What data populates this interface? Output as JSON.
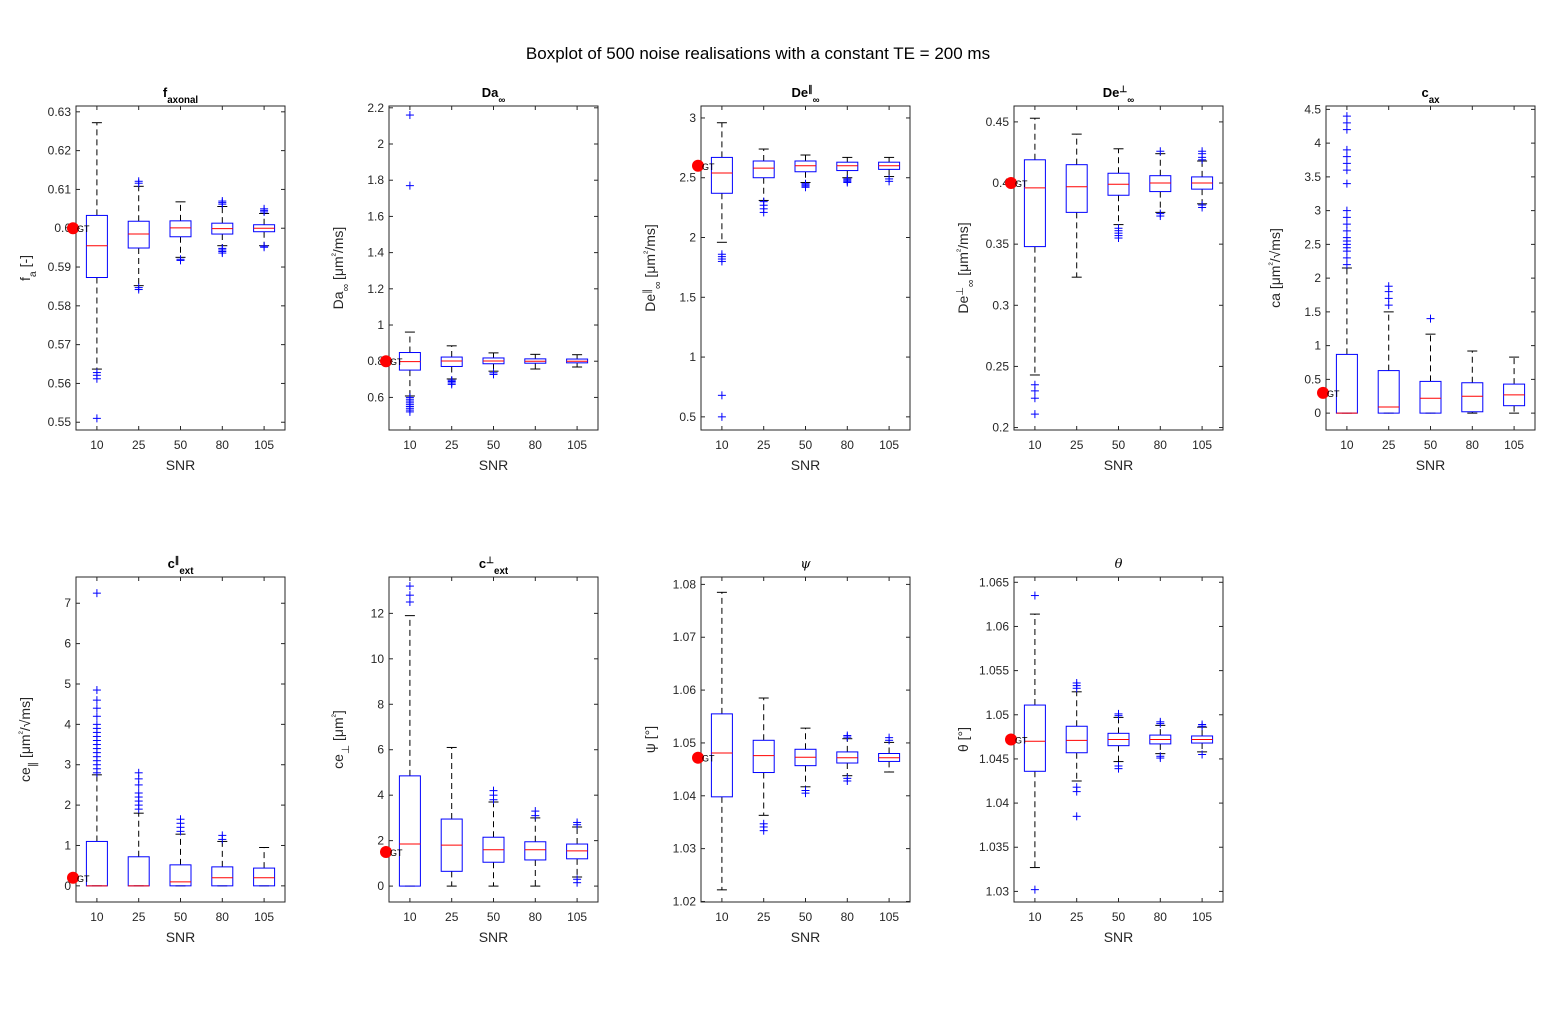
{
  "figure": {
    "title": "Boxplot of 500 noise realisations with a constant TE = 200 ms",
    "colors": {
      "box": "#0000ff",
      "median": "#ff0000",
      "whisker": "#000000",
      "ground_truth": "#ff0000",
      "axes": "#262626"
    },
    "ground_truth_label": "GT"
  },
  "chart_data": [
    {
      "type": "box",
      "title": "f_axonal",
      "title_html": "f<sub>axonal</sub>",
      "ylabel": "f_a [-]",
      "xlabel": "SNR",
      "categories": [
        "10",
        "25",
        "50",
        "80",
        "105"
      ],
      "ylim": [
        0.548,
        0.6315
      ],
      "yticks": [
        0.55,
        0.56,
        0.57,
        0.58,
        0.59,
        0.6,
        0.61,
        0.62,
        0.63
      ],
      "ytick_labels": [
        "0.55",
        "0.56",
        "0.57",
        "0.58",
        "0.59",
        "0.6",
        "0.61",
        "0.62",
        "0.63"
      ],
      "ground_truth": 0.6,
      "boxes": [
        {
          "q1": 0.5873,
          "median": 0.5955,
          "q3": 0.6033,
          "whisker_low": 0.5637,
          "whisker_high": 0.6272,
          "outliers": [
            0.5612,
            0.5621,
            0.5628,
            0.551
          ]
        },
        {
          "q1": 0.5949,
          "median": 0.5985,
          "q3": 0.6018,
          "whisker_low": 0.5852,
          "whisker_high": 0.6108,
          "outliers": [
            0.5842,
            0.5847,
            0.6116,
            0.6121
          ]
        },
        {
          "q1": 0.5978,
          "median": 0.6001,
          "q3": 0.6019,
          "whisker_low": 0.5925,
          "whisker_high": 0.6068,
          "outliers": [
            0.5917,
            0.592
          ]
        },
        {
          "q1": 0.5985,
          "median": 0.5999,
          "q3": 0.6013,
          "whisker_low": 0.5955,
          "whisker_high": 0.6056,
          "outliers": [
            0.5936,
            0.594,
            0.5944,
            0.5948,
            0.6062,
            0.6066,
            0.607
          ]
        },
        {
          "q1": 0.5991,
          "median": 0.6,
          "q3": 0.6009,
          "whisker_low": 0.5955,
          "whisker_high": 0.6038,
          "outliers": [
            0.5951,
            0.5954,
            0.6042,
            0.6046,
            0.605
          ]
        }
      ]
    },
    {
      "type": "box",
      "title": "Da_∞",
      "title_html": "Da<sub>∞</sub>",
      "ylabel": "Da_∞ [μm²/ms]",
      "xlabel": "SNR",
      "categories": [
        "10",
        "25",
        "50",
        "80",
        "105"
      ],
      "ylim": [
        0.42,
        2.21
      ],
      "yticks": [
        0.6,
        0.8,
        1,
        1.2,
        1.4,
        1.6,
        1.8,
        2,
        2.2
      ],
      "ytick_labels": [
        "0.6",
        "0.8",
        "1",
        "1.2",
        "1.4",
        "1.6",
        "1.8",
        "2",
        "2.2"
      ],
      "ground_truth": 0.8,
      "boxes": [
        {
          "q1": 0.751,
          "median": 0.798,
          "q3": 0.848,
          "whisker_low": 0.608,
          "whisker_high": 0.961,
          "outliers": [
            0.52,
            0.53,
            0.54,
            0.55,
            0.56,
            0.57,
            0.58,
            0.59,
            0.6,
            1.77,
            2.16
          ]
        },
        {
          "q1": 0.771,
          "median": 0.801,
          "q3": 0.823,
          "whisker_low": 0.702,
          "whisker_high": 0.885,
          "outliers": [
            0.672,
            0.68,
            0.688,
            0.695
          ]
        },
        {
          "q1": 0.786,
          "median": 0.801,
          "q3": 0.818,
          "whisker_low": 0.745,
          "whisker_high": 0.846,
          "outliers": [
            0.727,
            0.736
          ]
        },
        {
          "q1": 0.789,
          "median": 0.8,
          "q3": 0.813,
          "whisker_low": 0.757,
          "whisker_high": 0.838,
          "outliers": []
        },
        {
          "q1": 0.791,
          "median": 0.8,
          "q3": 0.812,
          "whisker_low": 0.768,
          "whisker_high": 0.836,
          "outliers": []
        }
      ]
    },
    {
      "type": "box",
      "title": "De∥_∞",
      "title_html": "De<sup>∥</sup><sub>∞</sub>",
      "ylabel": "De∥_∞ [μm²/ms]",
      "xlabel": "SNR",
      "categories": [
        "10",
        "25",
        "50",
        "80",
        "105"
      ],
      "ylim": [
        0.39,
        3.1
      ],
      "yticks": [
        0.5,
        1,
        1.5,
        2,
        2.5,
        3
      ],
      "ytick_labels": [
        "0.5",
        "1",
        "1.5",
        "2",
        "2.5",
        "3"
      ],
      "ground_truth": 2.6,
      "boxes": [
        {
          "q1": 2.37,
          "median": 2.54,
          "q3": 2.67,
          "whisker_low": 1.96,
          "whisker_high": 2.96,
          "outliers": [
            1.8,
            1.82,
            1.84,
            1.86,
            0.68,
            0.5
          ]
        },
        {
          "q1": 2.5,
          "median": 2.58,
          "q3": 2.64,
          "whisker_low": 2.31,
          "whisker_high": 2.74,
          "outliers": [
            2.21,
            2.24,
            2.27,
            2.3
          ]
        },
        {
          "q1": 2.55,
          "median": 2.6,
          "q3": 2.64,
          "whisker_low": 2.46,
          "whisker_high": 2.69,
          "outliers": [
            2.42,
            2.43,
            2.44,
            2.45
          ]
        },
        {
          "q1": 2.56,
          "median": 2.6,
          "q3": 2.63,
          "whisker_low": 2.5,
          "whisker_high": 2.67,
          "outliers": [
            2.46,
            2.47,
            2.48,
            2.49
          ]
        },
        {
          "q1": 2.57,
          "median": 2.6,
          "q3": 2.63,
          "whisker_low": 2.51,
          "whisker_high": 2.67,
          "outliers": [
            2.47,
            2.49
          ]
        }
      ]
    },
    {
      "type": "box",
      "title": "De⊥_∞",
      "title_html": "De<sup>⊥</sup><sub>∞</sub>",
      "ylabel": "De⊥_∞ [μm²/ms]",
      "xlabel": "SNR",
      "categories": [
        "10",
        "25",
        "50",
        "80",
        "105"
      ],
      "ylim": [
        0.198,
        0.463
      ],
      "yticks": [
        0.2,
        0.25,
        0.3,
        0.35,
        0.4,
        0.45
      ],
      "ytick_labels": [
        "0.2",
        "0.25",
        "0.3",
        "0.35",
        "0.4",
        "0.45"
      ],
      "ground_truth": 0.4,
      "boxes": [
        {
          "q1": 0.348,
          "median": 0.396,
          "q3": 0.419,
          "whisker_low": 0.243,
          "whisker_high": 0.453,
          "outliers": [
            0.235,
            0.23,
            0.224,
            0.211
          ]
        },
        {
          "q1": 0.376,
          "median": 0.397,
          "q3": 0.415,
          "whisker_low": 0.323,
          "whisker_high": 0.44,
          "outliers": []
        },
        {
          "q1": 0.39,
          "median": 0.399,
          "q3": 0.408,
          "whisker_low": 0.366,
          "whisker_high": 0.428,
          "outliers": [
            0.355,
            0.357,
            0.359,
            0.361,
            0.363
          ]
        },
        {
          "q1": 0.393,
          "median": 0.4,
          "q3": 0.406,
          "whisker_low": 0.376,
          "whisker_high": 0.424,
          "outliers": [
            0.373,
            0.375,
            0.426
          ]
        },
        {
          "q1": 0.395,
          "median": 0.4,
          "q3": 0.405,
          "whisker_low": 0.383,
          "whisker_high": 0.418,
          "outliers": [
            0.38,
            0.382,
            0.419,
            0.421,
            0.424,
            0.426
          ]
        }
      ]
    },
    {
      "type": "box",
      "title": "c_ax",
      "title_html": "c<sub>ax</sub>",
      "ylabel": "ca [μm²/√ms]",
      "xlabel": "SNR",
      "categories": [
        "10",
        "25",
        "50",
        "80",
        "105"
      ],
      "ylim": [
        -0.25,
        4.55
      ],
      "yticks": [
        0,
        0.5,
        1,
        1.5,
        2,
        2.5,
        3,
        3.5,
        4,
        4.5
      ],
      "ytick_labels": [
        "0",
        "0.5",
        "1",
        "1.5",
        "2",
        "2.5",
        "3",
        "3.5",
        "4",
        "4.5"
      ],
      "ground_truth": 0.3,
      "boxes": [
        {
          "q1": 0.0,
          "median": 0.0,
          "q3": 0.87,
          "whisker_low": 0.0,
          "whisker_high": 2.15,
          "outliers": [
            2.2,
            2.3,
            2.4,
            2.45,
            2.5,
            2.55,
            2.6,
            2.7,
            2.8,
            2.9,
            3.0,
            3.4,
            3.6,
            3.7,
            3.8,
            3.9,
            4.2,
            4.3,
            4.4
          ]
        },
        {
          "q1": 0.0,
          "median": 0.09,
          "q3": 0.63,
          "whisker_low": 0.0,
          "whisker_high": 1.5,
          "outliers": [
            1.6,
            1.7,
            1.8,
            1.88
          ]
        },
        {
          "q1": 0.0,
          "median": 0.22,
          "q3": 0.47,
          "whisker_low": 0.0,
          "whisker_high": 1.17,
          "outliers": [
            1.4
          ]
        },
        {
          "q1": 0.02,
          "median": 0.25,
          "q3": 0.45,
          "whisker_low": 0.0,
          "whisker_high": 0.92,
          "outliers": []
        },
        {
          "q1": 0.11,
          "median": 0.27,
          "q3": 0.43,
          "whisker_low": 0.0,
          "whisker_high": 0.83,
          "outliers": []
        }
      ]
    },
    {
      "type": "box",
      "title": "c∥_ext",
      "title_html": "c<sup>∥</sup><sub>ext</sub>",
      "ylabel": "ce_∥ [μm²/√ms]",
      "xlabel": "SNR",
      "categories": [
        "10",
        "25",
        "50",
        "80",
        "105"
      ],
      "ylim": [
        -0.4,
        7.65
      ],
      "yticks": [
        0,
        1,
        2,
        3,
        4,
        5,
        6,
        7
      ],
      "ytick_labels": [
        "0",
        "1",
        "2",
        "3",
        "4",
        "5",
        "6",
        "7"
      ],
      "ground_truth": 0.2,
      "boxes": [
        {
          "q1": 0.0,
          "median": 0.0,
          "q3": 1.1,
          "whisker_low": 0.0,
          "whisker_high": 2.75,
          "outliers": [
            2.8,
            2.9,
            3.0,
            3.1,
            3.2,
            3.3,
            3.4,
            3.5,
            3.6,
            3.7,
            3.8,
            3.9,
            4.0,
            4.2,
            4.4,
            4.6,
            4.85,
            7.25
          ]
        },
        {
          "q1": 0.0,
          "median": 0.0,
          "q3": 0.72,
          "whisker_low": 0.0,
          "whisker_high": 1.8,
          "outliers": [
            1.9,
            2.0,
            2.1,
            2.2,
            2.3,
            2.5,
            2.65,
            2.8
          ]
        },
        {
          "q1": 0.0,
          "median": 0.1,
          "q3": 0.52,
          "whisker_low": 0.0,
          "whisker_high": 1.28,
          "outliers": [
            1.35,
            1.45,
            1.55,
            1.65
          ]
        },
        {
          "q1": 0.0,
          "median": 0.2,
          "q3": 0.47,
          "whisker_low": 0.0,
          "whisker_high": 1.1,
          "outliers": [
            1.15,
            1.25
          ]
        },
        {
          "q1": 0.0,
          "median": 0.2,
          "q3": 0.44,
          "whisker_low": 0.0,
          "whisker_high": 0.95,
          "outliers": []
        }
      ]
    },
    {
      "type": "box",
      "title": "c⊥_ext",
      "title_html": "c<sup>⊥</sup><sub>ext</sub>",
      "ylabel": "ce_⊥ [μm²]",
      "xlabel": "SNR",
      "categories": [
        "10",
        "25",
        "50",
        "80",
        "105"
      ],
      "ylim": [
        -0.7,
        13.6
      ],
      "yticks": [
        0,
        2,
        4,
        6,
        8,
        10,
        12
      ],
      "ytick_labels": [
        "0",
        "2",
        "4",
        "6",
        "8",
        "10",
        "12"
      ],
      "ground_truth": 1.5,
      "boxes": [
        {
          "q1": 0.0,
          "median": 1.85,
          "q3": 4.85,
          "whisker_low": 0.0,
          "whisker_high": 11.9,
          "outliers": [
            12.5,
            12.8,
            13.2
          ]
        },
        {
          "q1": 0.65,
          "median": 1.8,
          "q3": 2.95,
          "whisker_low": 0.0,
          "whisker_high": 6.1,
          "outliers": []
        },
        {
          "q1": 1.05,
          "median": 1.6,
          "q3": 2.15,
          "whisker_low": 0.0,
          "whisker_high": 3.7,
          "outliers": [
            3.8,
            4.0,
            4.2
          ]
        },
        {
          "q1": 1.15,
          "median": 1.6,
          "q3": 1.95,
          "whisker_low": 0.0,
          "whisker_high": 3.0,
          "outliers": [
            3.1,
            3.3
          ]
        },
        {
          "q1": 1.2,
          "median": 1.55,
          "q3": 1.85,
          "whisker_low": 0.4,
          "whisker_high": 2.6,
          "outliers": [
            0.15,
            0.3,
            2.7,
            2.8
          ]
        }
      ]
    },
    {
      "type": "box",
      "title": "ψ",
      "title_html": "ψ",
      "ylabel": "ψ [°]",
      "xlabel": "SNR",
      "categories": [
        "10",
        "25",
        "50",
        "80",
        "105"
      ],
      "ylim": [
        1.0199,
        1.0814
      ],
      "yticks": [
        1.02,
        1.03,
        1.04,
        1.05,
        1.06,
        1.07,
        1.08
      ],
      "ytick_labels": [
        "1.02",
        "1.03",
        "1.04",
        "1.05",
        "1.06",
        "1.07",
        "1.08"
      ],
      "ground_truth": 1.0472,
      "boxes": [
        {
          "q1": 1.0398,
          "median": 1.0481,
          "q3": 1.0555,
          "whisker_low": 1.0222,
          "whisker_high": 1.0785,
          "outliers": []
        },
        {
          "q1": 1.0444,
          "median": 1.0476,
          "q3": 1.0505,
          "whisker_low": 1.0363,
          "whisker_high": 1.0585,
          "outliers": [
            1.0334,
            1.0341,
            1.0347
          ]
        },
        {
          "q1": 1.0457,
          "median": 1.0473,
          "q3": 1.0488,
          "whisker_low": 1.0417,
          "whisker_high": 1.0528,
          "outliers": [
            1.0405,
            1.041
          ]
        },
        {
          "q1": 1.0462,
          "median": 1.0472,
          "q3": 1.0483,
          "whisker_low": 1.0438,
          "whisker_high": 1.0508,
          "outliers": [
            1.0428,
            1.0433,
            1.0511,
            1.0514
          ]
        },
        {
          "q1": 1.0465,
          "median": 1.0472,
          "q3": 1.048,
          "whisker_low": 1.0445,
          "whisker_high": 1.0501,
          "outliers": [
            1.0505,
            1.051
          ]
        }
      ]
    },
    {
      "type": "box",
      "title": "θ",
      "title_html": "θ",
      "ylabel": "θ [°]",
      "xlabel": "SNR",
      "categories": [
        "10",
        "25",
        "50",
        "80",
        "105"
      ],
      "ylim": [
        1.0288,
        1.0656
      ],
      "yticks": [
        1.03,
        1.035,
        1.04,
        1.045,
        1.05,
        1.055,
        1.06,
        1.065
      ],
      "ytick_labels": [
        "1.03",
        "1.035",
        "1.04",
        "1.045",
        "1.05",
        "1.055",
        "1.06",
        "1.065"
      ],
      "ground_truth": 1.0472,
      "boxes": [
        {
          "q1": 1.0436,
          "median": 1.047,
          "q3": 1.0511,
          "whisker_low": 1.0327,
          "whisker_high": 1.0614,
          "outliers": [
            1.0302,
            1.0635
          ]
        },
        {
          "q1": 1.0457,
          "median": 1.0471,
          "q3": 1.0487,
          "whisker_low": 1.0425,
          "whisker_high": 1.0526,
          "outliers": [
            1.0385,
            1.0413,
            1.0418,
            1.053,
            1.0533,
            1.0536
          ]
        },
        {
          "q1": 1.0465,
          "median": 1.0472,
          "q3": 1.0479,
          "whisker_low": 1.0447,
          "whisker_high": 1.0497,
          "outliers": [
            1.0439,
            1.0442,
            1.0499,
            1.0501
          ]
        },
        {
          "q1": 1.0467,
          "median": 1.0472,
          "q3": 1.0477,
          "whisker_low": 1.0456,
          "whisker_high": 1.0488,
          "outliers": [
            1.0451,
            1.0453,
            1.049,
            1.0492
          ]
        },
        {
          "q1": 1.0468,
          "median": 1.0472,
          "q3": 1.0476,
          "whisker_low": 1.0458,
          "whisker_high": 1.0486,
          "outliers": [
            1.0455,
            1.0487,
            1.0489
          ]
        }
      ]
    }
  ]
}
